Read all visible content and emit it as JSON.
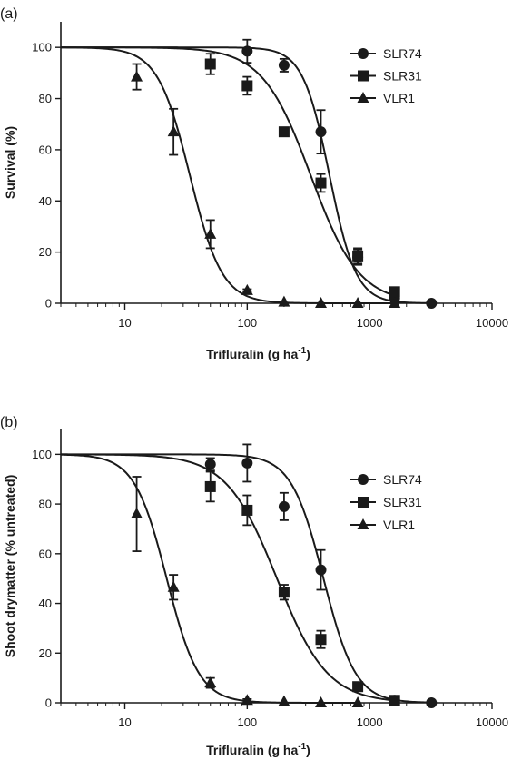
{
  "chart_data": [
    {
      "panel": "(a)",
      "type": "scatter",
      "xlabel": "Trifluralin (g ha",
      "xlabel_sup": "-1",
      "xlabel_tail": ")",
      "ylabel": "Survival (%)",
      "xscale": "log",
      "xlim": [
        3,
        10000
      ],
      "ylim": [
        0,
        110
      ],
      "x_ticks": [
        10,
        100,
        1000,
        10000
      ],
      "x_tick_labels": [
        "10",
        "100",
        "1000",
        "10000"
      ],
      "y_ticks": [
        0,
        20,
        40,
        60,
        80,
        100
      ],
      "y_tick_labels": [
        "0",
        "20",
        "40",
        "60",
        "80",
        "100"
      ],
      "legend_position": "top-right",
      "series": [
        {
          "name": "SLR74",
          "marker": "circle",
          "x": [
            100,
            200,
            400,
            800,
            1600,
            3200
          ],
          "y": [
            98.5,
            93,
            67,
            18,
            2,
            0
          ],
          "err": [
            4.5,
            2.5,
            8.5,
            3,
            1.5,
            0
          ],
          "fit": {
            "top": 100,
            "ed50": 470,
            "slope": 4.0
          }
        },
        {
          "name": "SLR31",
          "marker": "square",
          "x": [
            50,
            100,
            200,
            400,
            800,
            1600
          ],
          "y": [
            93.5,
            85,
            67,
            47,
            18.5,
            4.5
          ],
          "err": [
            4,
            3.5,
            1.5,
            3.5,
            3,
            1
          ],
          "fit": {
            "top": 100,
            "ed50": 330,
            "slope": 2.2
          }
        },
        {
          "name": "VLR1",
          "marker": "triangle",
          "x": [
            12.5,
            25,
            50,
            100,
            200,
            400,
            800,
            1600
          ],
          "y": [
            88.5,
            67,
            27,
            5,
            0.5,
            0,
            0,
            0
          ],
          "err": [
            5,
            9,
            5.5,
            0.5,
            0,
            0,
            0,
            0
          ],
          "fit": {
            "top": 100,
            "ed50": 34,
            "slope": 3.3
          }
        }
      ]
    },
    {
      "panel": "(b)",
      "type": "scatter",
      "xlabel": "Trifluralin (g ha",
      "xlabel_sup": "-1",
      "xlabel_tail": ")",
      "ylabel": "Shoot drymatter (% untreated)",
      "xscale": "log",
      "xlim": [
        3,
        10000
      ],
      "ylim": [
        0,
        110
      ],
      "x_ticks": [
        10,
        100,
        1000,
        10000
      ],
      "x_tick_labels": [
        "10",
        "100",
        "1000",
        "10000"
      ],
      "y_ticks": [
        0,
        20,
        40,
        60,
        80,
        100
      ],
      "y_tick_labels": [
        "0",
        "20",
        "40",
        "60",
        "80",
        "100"
      ],
      "legend_position": "right",
      "series": [
        {
          "name": "SLR74",
          "marker": "circle",
          "x": [
            50,
            100,
            200,
            400,
            1600,
            3200
          ],
          "y": [
            96,
            96.5,
            79,
            53.5,
            1,
            0
          ],
          "err": [
            2.5,
            7.5,
            5.5,
            8,
            0.5,
            0
          ],
          "fit": {
            "top": 100,
            "ed50": 420,
            "slope": 3.3
          }
        },
        {
          "name": "SLR31",
          "marker": "square",
          "x": [
            50,
            100,
            200,
            400,
            800,
            1600
          ],
          "y": [
            87,
            77.5,
            44.5,
            25.5,
            6.5,
            1
          ],
          "err": [
            6,
            6,
            3,
            3.5,
            1,
            0.5
          ],
          "fit": {
            "top": 100,
            "ed50": 175,
            "slope": 2.1
          }
        },
        {
          "name": "VLR1",
          "marker": "triangle",
          "x": [
            12.5,
            25,
            50,
            100,
            200,
            400,
            800
          ],
          "y": [
            76,
            46.5,
            8,
            1,
            0.5,
            0,
            0
          ],
          "err": [
            15,
            5,
            2,
            0.5,
            0,
            0,
            0
          ],
          "fit": {
            "top": 100,
            "ed50": 22,
            "slope": 3.3
          }
        }
      ]
    }
  ]
}
